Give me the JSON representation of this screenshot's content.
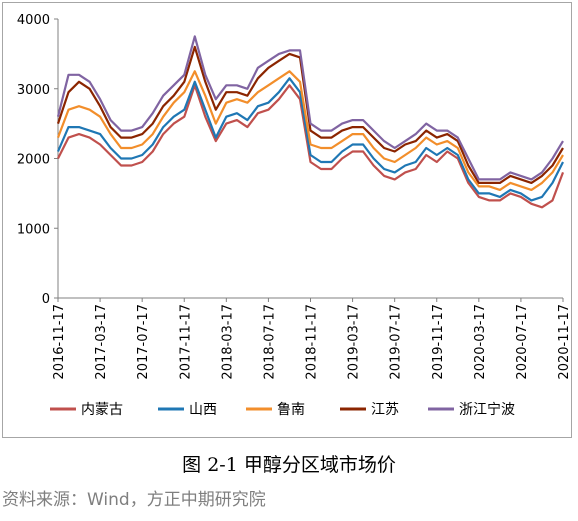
{
  "caption": "图 2-1 甲醇分区域市场价",
  "source": "资料来源：Wind，方正中期研究院",
  "chart_data": {
    "type": "line",
    "title": "",
    "xlabel": "",
    "ylabel": "",
    "ylim": [
      0,
      4000
    ],
    "yticks": [
      "0",
      "1000",
      "2000",
      "3000",
      "4000"
    ],
    "x_ticks": [
      "2016-11-17",
      "2017-03-17",
      "2017-07-17",
      "2017-11-17",
      "2018-03-17",
      "2018-07-17",
      "2018-11-17",
      "2019-03-17",
      "2019-07-17",
      "2019-11-17",
      "2020-03-17",
      "2020-07-17",
      "2020-11-17"
    ],
    "grid": false,
    "legend_position": "bottom",
    "x": [
      "2016-11",
      "2016-12",
      "2017-01",
      "2017-02",
      "2017-03",
      "2017-04",
      "2017-05",
      "2017-06",
      "2017-07",
      "2017-08",
      "2017-09",
      "2017-10",
      "2017-11",
      "2017-12",
      "2018-01",
      "2018-02",
      "2018-03",
      "2018-04",
      "2018-05",
      "2018-06",
      "2018-07",
      "2018-08",
      "2018-09",
      "2018-10",
      "2018-11",
      "2018-12",
      "2019-01",
      "2019-02",
      "2019-03",
      "2019-04",
      "2019-05",
      "2019-06",
      "2019-07",
      "2019-08",
      "2019-09",
      "2019-10",
      "2019-11",
      "2019-12",
      "2020-01",
      "2020-02",
      "2020-03",
      "2020-04",
      "2020-05",
      "2020-06",
      "2020-07",
      "2020-08",
      "2020-09",
      "2020-10",
      "2020-11"
    ],
    "series": [
      {
        "name": "内蒙古",
        "color": "#c0504d",
        "values": [
          2000,
          2300,
          2350,
          2300,
          2200,
          2050,
          1900,
          1900,
          1950,
          2100,
          2350,
          2500,
          2600,
          3050,
          2600,
          2250,
          2500,
          2550,
          2450,
          2650,
          2700,
          2850,
          3050,
          2850,
          1950,
          1850,
          1850,
          2000,
          2100,
          2100,
          1900,
          1750,
          1700,
          1800,
          1850,
          2050,
          1950,
          2100,
          2000,
          1650,
          1450,
          1400,
          1400,
          1500,
          1450,
          1350,
          1300,
          1400,
          1800
        ]
      },
      {
        "name": "山西",
        "color": "#1f77b4",
        "values": [
          2100,
          2450,
          2450,
          2400,
          2350,
          2150,
          2000,
          2000,
          2050,
          2200,
          2450,
          2600,
          2700,
          3100,
          2700,
          2300,
          2600,
          2650,
          2550,
          2750,
          2800,
          2950,
          3150,
          2950,
          2050,
          1950,
          1950,
          2100,
          2200,
          2200,
          2000,
          1850,
          1800,
          1900,
          1950,
          2150,
          2050,
          2150,
          2050,
          1700,
          1500,
          1500,
          1450,
          1550,
          1500,
          1400,
          1450,
          1650,
          1950
        ]
      },
      {
        "name": "鲁南",
        "color": "#f28e2b",
        "values": [
          2300,
          2700,
          2750,
          2700,
          2600,
          2350,
          2150,
          2150,
          2200,
          2350,
          2600,
          2800,
          2950,
          3250,
          2900,
          2500,
          2800,
          2850,
          2800,
          2950,
          3050,
          3150,
          3250,
          3100,
          2200,
          2150,
          2150,
          2250,
          2350,
          2350,
          2150,
          2000,
          1950,
          2050,
          2150,
          2300,
          2200,
          2250,
          2150,
          1800,
          1600,
          1600,
          1550,
          1650,
          1600,
          1550,
          1650,
          1800,
          2050
        ]
      },
      {
        "name": "江苏",
        "color": "#8b2500",
        "values": [
          2500,
          2950,
          3100,
          3000,
          2750,
          2450,
          2300,
          2300,
          2350,
          2500,
          2750,
          2900,
          3100,
          3600,
          3100,
          2700,
          2950,
          2950,
          2900,
          3150,
          3300,
          3400,
          3500,
          3450,
          2400,
          2300,
          2300,
          2400,
          2450,
          2450,
          2300,
          2150,
          2100,
          2200,
          2250,
          2400,
          2300,
          2350,
          2250,
          1900,
          1650,
          1650,
          1650,
          1750,
          1700,
          1650,
          1750,
          1900,
          2150
        ]
      },
      {
        "name": "浙江宁波",
        "color": "#8064a2",
        "values": [
          2600,
          3200,
          3200,
          3100,
          2850,
          2550,
          2400,
          2400,
          2450,
          2650,
          2900,
          3050,
          3200,
          3750,
          3200,
          2850,
          3050,
          3050,
          3000,
          3300,
          3400,
          3500,
          3550,
          3550,
          2500,
          2400,
          2400,
          2500,
          2550,
          2550,
          2400,
          2250,
          2150,
          2250,
          2350,
          2500,
          2400,
          2400,
          2300,
          2000,
          1700,
          1700,
          1700,
          1800,
          1750,
          1700,
          1800,
          2000,
          2250
        ]
      }
    ]
  }
}
